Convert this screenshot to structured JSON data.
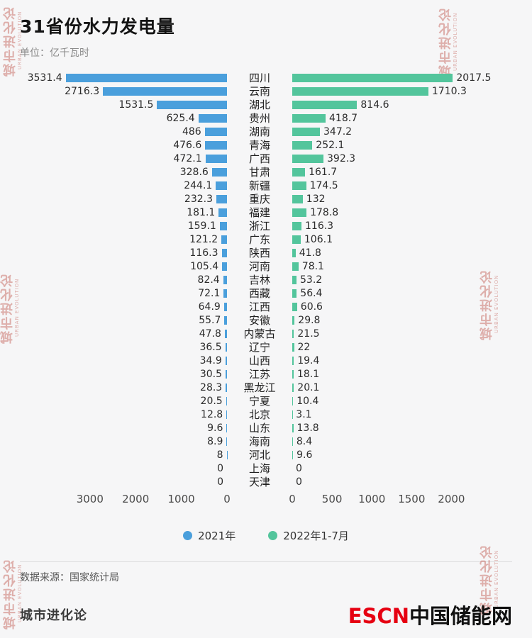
{
  "title": "31省份水力发电量",
  "subtitle": "单位：亿千瓦时",
  "source": "数据来源：国家统计局",
  "footer": {
    "brand": "城市进化论",
    "logo_red": "ESCN",
    "logo_black": "中国储能网"
  },
  "watermark": {
    "cn": "城市进化论",
    "en": "URBAN EVOLUTION"
  },
  "legend": [
    {
      "label": "2021年",
      "color": "#4A9FDC"
    },
    {
      "label": "2022年1-7月",
      "color": "#53C59C"
    }
  ],
  "chart_data": {
    "type": "bar",
    "orientation": "horizontal-mirrored",
    "title": "31省份水力发电量",
    "unit": "亿千瓦时",
    "categories": [
      "四川",
      "云南",
      "湖北",
      "贵州",
      "湖南",
      "青海",
      "广西",
      "甘肃",
      "新疆",
      "重庆",
      "福建",
      "浙江",
      "广东",
      "陕西",
      "河南",
      "吉林",
      "西藏",
      "江西",
      "安徽",
      "内蒙古",
      "辽宁",
      "山西",
      "江苏",
      "黑龙江",
      "宁夏",
      "北京",
      "山东",
      "海南",
      "河北",
      "上海",
      "天津"
    ],
    "series": [
      {
        "name": "2021年",
        "side": "left",
        "color": "#4A9FDC",
        "values": [
          3531.4,
          2716.3,
          1531.5,
          625.4,
          486,
          476.6,
          472.1,
          328.6,
          244.1,
          232.3,
          181.1,
          159.1,
          121.2,
          116.3,
          105.4,
          82.4,
          72.1,
          64.9,
          55.7,
          47.8,
          36.5,
          34.9,
          30.5,
          28.3,
          20.5,
          12.8,
          9.6,
          8.9,
          8,
          0,
          0
        ]
      },
      {
        "name": "2022年1-7月",
        "side": "right",
        "color": "#53C59C",
        "values": [
          2017.5,
          1710.3,
          814.6,
          418.7,
          347.2,
          252.1,
          392.3,
          161.7,
          174.5,
          132,
          178.8,
          116.3,
          106.1,
          41.8,
          78.1,
          53.2,
          56.4,
          60.6,
          29.8,
          21.5,
          22,
          19.4,
          18.1,
          20.1,
          10.4,
          3.1,
          13.8,
          8.4,
          9.6,
          0,
          0
        ]
      }
    ],
    "left_axis_ticks": [
      3000,
      2000,
      1000,
      0
    ],
    "right_axis_ticks": [
      0,
      500,
      1000,
      1500,
      2000
    ],
    "left_xlim": [
      0,
      3650
    ],
    "right_xlim": [
      0,
      2050
    ],
    "grid": false,
    "legend_position": "bottom"
  }
}
